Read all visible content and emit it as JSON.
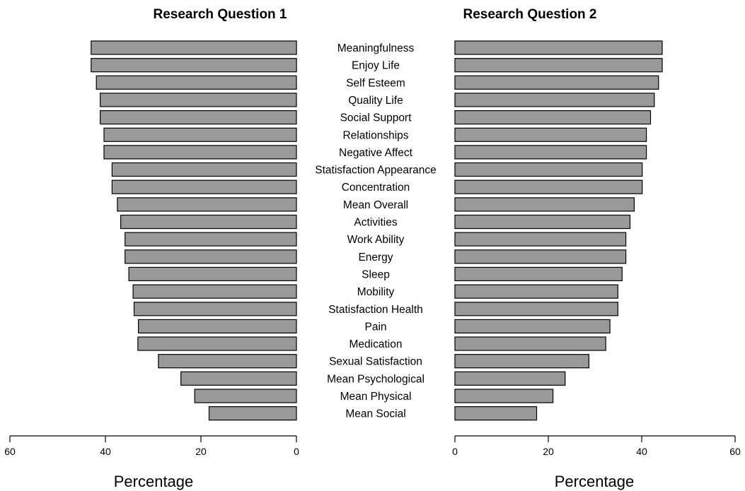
{
  "chart_data": {
    "type": "bar",
    "orientation": "horizontal",
    "layout": "back-to-back",
    "categories": [
      "Meaningfulness",
      "Enjoy Life",
      "Self Esteem",
      "Quality Life",
      "Social Support",
      "Relationships",
      "Negative Affect",
      "Statisfaction Appearance",
      "Concentration",
      "Mean Overall",
      "Activities",
      "Work Ability",
      "Energy",
      "Sleep",
      "Mobility",
      "Statisfaction Health",
      "Pain",
      "Medication",
      "Sexual Satisfaction",
      "Mean Psychological",
      "Mean Physical",
      "Mean Social"
    ],
    "panels": [
      {
        "title": "Research Question 1",
        "direction": "leftward",
        "xlabel": "Percentage",
        "xlim": [
          60,
          0
        ],
        "ticks": [
          "60",
          "40",
          "20",
          "0"
        ],
        "tick_values": [
          60,
          40,
          20,
          0
        ],
        "values": [
          43.0,
          43.0,
          41.9,
          41.1,
          41.1,
          40.3,
          40.3,
          38.6,
          38.6,
          37.5,
          36.8,
          35.9,
          35.9,
          35.1,
          34.2,
          34.0,
          33.1,
          33.2,
          28.9,
          24.2,
          21.3,
          18.3
        ]
      },
      {
        "title": "Research Question 2",
        "direction": "rightward",
        "xlabel": "Percentage",
        "xlim": [
          0,
          60
        ],
        "ticks": [
          "0",
          "20",
          "40",
          "60"
        ],
        "tick_values": [
          0,
          20,
          40,
          60
        ],
        "values": [
          44.4,
          44.4,
          43.6,
          42.7,
          41.9,
          41.0,
          41.0,
          40.1,
          40.1,
          38.4,
          37.5,
          36.6,
          36.6,
          35.8,
          34.9,
          34.9,
          33.2,
          32.3,
          28.7,
          23.6,
          21.0,
          17.5
        ]
      }
    ],
    "bar_color": "#999999",
    "grid": false,
    "legend": "none"
  }
}
